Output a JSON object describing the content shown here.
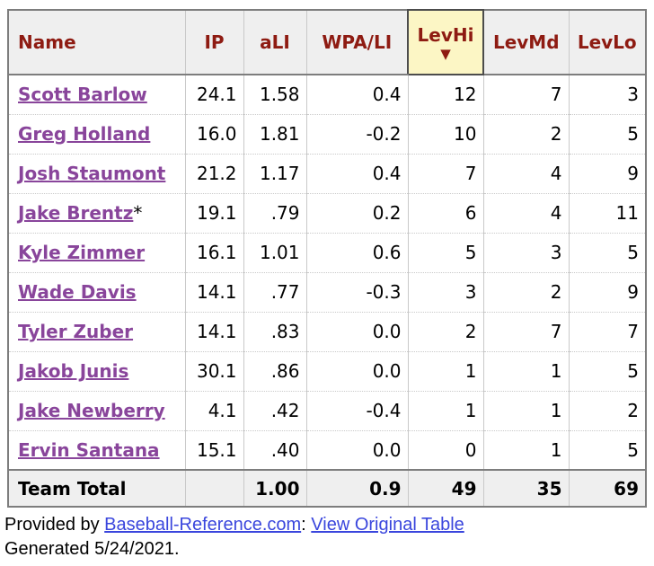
{
  "theme": {
    "header_text_color": "#8e1b12",
    "player_link_color": "#89459b",
    "footer_link_color": "#3a46dd",
    "sorted_column_bg": "#fcf6c5",
    "header_bg": "#efefef",
    "table_border": "#7d7d7d"
  },
  "table": {
    "columns": [
      {
        "label": "Name",
        "sorted": false
      },
      {
        "label": "IP",
        "sorted": false
      },
      {
        "label": "aLI",
        "sorted": false
      },
      {
        "label": "WPA/LI",
        "sorted": false
      },
      {
        "label": "LevHi",
        "sorted": true,
        "sort_icon": "▼"
      },
      {
        "label": "LevMd",
        "sorted": false
      },
      {
        "label": "LevLo",
        "sorted": false
      }
    ],
    "rows": [
      {
        "player": "Scott Barlow",
        "note": "",
        "values": [
          "24.1",
          "1.58",
          "0.4",
          "12",
          "7",
          "3"
        ]
      },
      {
        "player": "Greg Holland",
        "note": "",
        "values": [
          "16.0",
          "1.81",
          "-0.2",
          "10",
          "2",
          "5"
        ]
      },
      {
        "player": "Josh Staumont",
        "note": "",
        "values": [
          "21.2",
          "1.17",
          "0.4",
          "7",
          "4",
          "9"
        ]
      },
      {
        "player": "Jake Brentz",
        "note": "*",
        "values": [
          "19.1",
          ".79",
          "0.2",
          "6",
          "4",
          "11"
        ]
      },
      {
        "player": "Kyle Zimmer",
        "note": "",
        "values": [
          "16.1",
          "1.01",
          "0.6",
          "5",
          "3",
          "5"
        ]
      },
      {
        "player": "Wade Davis",
        "note": "",
        "values": [
          "14.1",
          ".77",
          "-0.3",
          "3",
          "2",
          "9"
        ]
      },
      {
        "player": "Tyler Zuber",
        "note": "",
        "values": [
          "14.1",
          ".83",
          "0.0",
          "2",
          "7",
          "7"
        ]
      },
      {
        "player": "Jakob Junis",
        "note": "",
        "values": [
          "30.1",
          ".86",
          "0.0",
          "1",
          "1",
          "5"
        ]
      },
      {
        "player": "Jake Newberry",
        "note": "",
        "values": [
          "4.1",
          ".42",
          "-0.4",
          "1",
          "1",
          "2"
        ]
      },
      {
        "player": "Ervin Santana",
        "note": "",
        "values": [
          "15.1",
          ".40",
          "0.0",
          "0",
          "1",
          "5"
        ]
      }
    ],
    "total": {
      "label": "Team Total",
      "values": [
        "",
        "1.00",
        "0.9",
        "49",
        "35",
        "69"
      ]
    }
  },
  "footer": {
    "provided_by": "Provided by ",
    "source_link": "Baseball-Reference.com",
    "separator": ": ",
    "view_link": "View Original Table",
    "generated": "Generated 5/24/2021."
  }
}
